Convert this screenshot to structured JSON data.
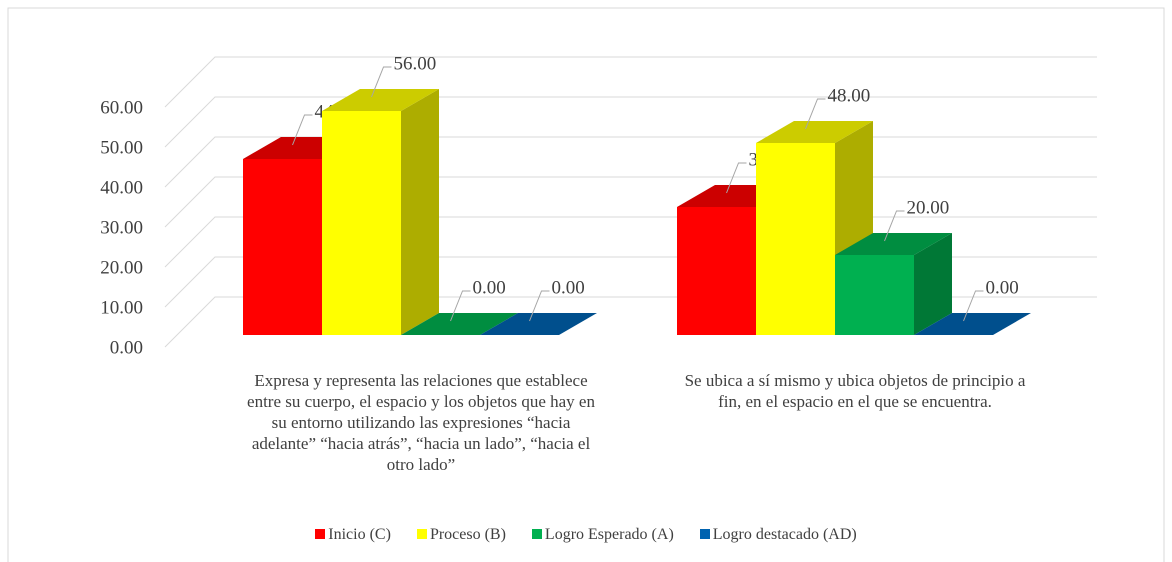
{
  "chart_data": {
    "type": "bar3d",
    "categories": [
      "Expresa y representa las relaciones que establece entre su cuerpo, el espacio y los objetos que hay en su entorno utilizando las expresiones “hacia adelante” “hacia atrás”, “hacia un lado”, “hacia el otro lado”",
      "Se ubica a sí mismo y ubica objetos de principio a fin, en el espacio en el que se encuentra."
    ],
    "series": [
      {
        "name": "Inicio (C)",
        "color": "#ff0000",
        "values": [
          44,
          32
        ],
        "value_labels": [
          "44.00",
          "32.00"
        ]
      },
      {
        "name": "Proceso (B)",
        "color": "#ffff00",
        "values": [
          56,
          48
        ],
        "value_labels": [
          "56.00",
          "48.00"
        ]
      },
      {
        "name": "Logro Esperado  (A)",
        "color": "#00b050",
        "values": [
          0,
          20
        ],
        "value_labels": [
          "0.00",
          "20.00"
        ]
      },
      {
        "name": "Logro destacado (AD)",
        "color": "#0063b0",
        "values": [
          0,
          0
        ],
        "value_labels": [
          "0.00",
          "0.00"
        ]
      }
    ],
    "ylim": [
      0,
      60
    ],
    "yticks": [
      {
        "value": 0,
        "label": "0.00"
      },
      {
        "value": 10,
        "label": "10.00"
      },
      {
        "value": 20,
        "label": "20.00"
      },
      {
        "value": 30,
        "label": "30.00"
      },
      {
        "value": 40,
        "label": "40.00"
      },
      {
        "value": 50,
        "label": "50.00"
      },
      {
        "value": 60,
        "label": "60.00"
      }
    ],
    "grid": true,
    "legend": "bottom"
  }
}
